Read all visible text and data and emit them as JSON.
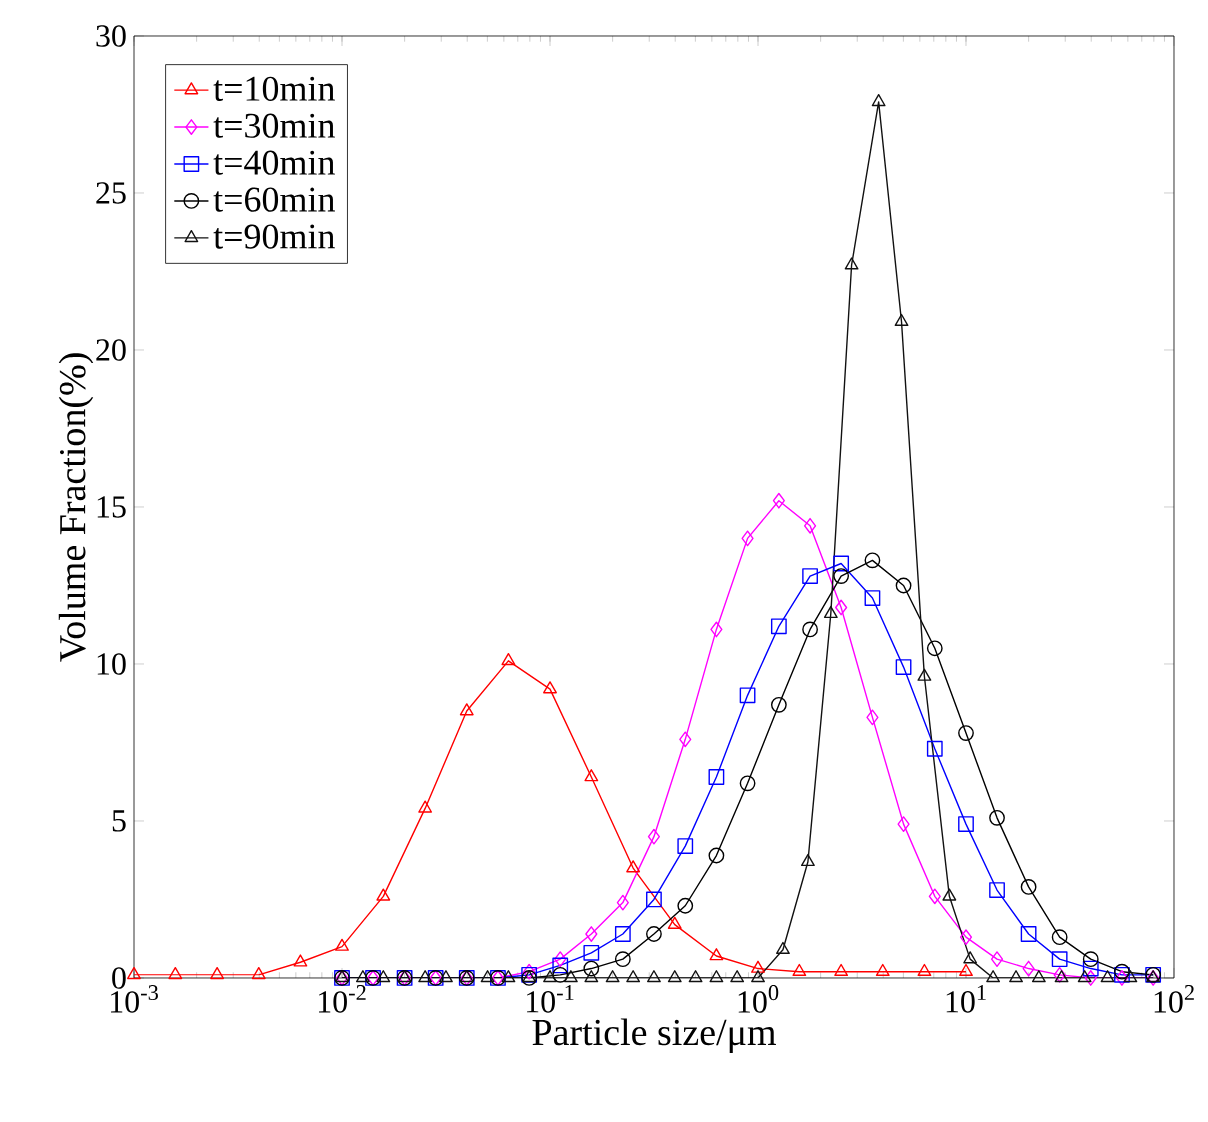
{
  "chart_data": {
    "type": "line",
    "xlabel": "Particle size/μm",
    "ylabel": "Volume Fraction(%)",
    "log": "x",
    "xlim": [
      0.001,
      100
    ],
    "ylim": [
      0,
      30
    ],
    "xticks": [
      {
        "value": 0.001,
        "label": "10$^{-3}$"
      },
      {
        "value": 0.01,
        "label": "10$^{-2}$"
      },
      {
        "value": 0.1,
        "label": "10$^{-1}$"
      },
      {
        "value": 1,
        "label": "10$^{0}$"
      },
      {
        "value": 10,
        "label": "10$^{1}$"
      },
      {
        "value": 100,
        "label": "10$^{2}$"
      }
    ],
    "yticks": [
      0,
      5,
      10,
      15,
      20,
      25,
      30
    ],
    "grid": false,
    "legend": "top left",
    "line_style": "solid",
    "series": [
      {
        "name": "t=10min",
        "color": "#ff0000",
        "marker": "triangle",
        "x": [
          0.001,
          0.00158,
          0.00251,
          0.00398,
          0.00631,
          0.01,
          0.0158,
          0.0251,
          0.0398,
          0.0631,
          0.1,
          0.158,
          0.251,
          0.398,
          0.631,
          1,
          1.58,
          2.51,
          3.98,
          6.31,
          10
        ],
        "values": [
          0.1,
          0.1,
          0.1,
          0.1,
          0.5,
          1.0,
          2.6,
          5.4,
          8.5,
          10.1,
          9.2,
          6.4,
          3.5,
          1.7,
          0.7,
          0.3,
          0.2,
          0.2,
          0.2,
          0.2,
          0.2
        ]
      },
      {
        "name": "t=30min",
        "color": "#ff00ff",
        "marker": "diamond",
        "x": [
          0.01,
          0.0141,
          0.02,
          0.0282,
          0.0398,
          0.0562,
          0.0794,
          0.112,
          0.158,
          0.224,
          0.316,
          0.447,
          0.631,
          0.891,
          1.26,
          1.78,
          2.51,
          3.55,
          5.01,
          7.08,
          10,
          14.1,
          20,
          28.2,
          39.8,
          56.2,
          79.4
        ],
        "values": [
          0,
          0,
          0,
          0,
          0,
          0,
          0.2,
          0.6,
          1.4,
          2.4,
          4.5,
          7.6,
          11.1,
          14.0,
          15.2,
          14.4,
          11.8,
          8.3,
          4.9,
          2.6,
          1.3,
          0.6,
          0.3,
          0.1,
          0,
          0,
          0
        ]
      },
      {
        "name": "t=40min",
        "color": "#0000ff",
        "marker": "square",
        "x": [
          0.01,
          0.0141,
          0.02,
          0.0282,
          0.0398,
          0.0562,
          0.0794,
          0.112,
          0.158,
          0.224,
          0.316,
          0.447,
          0.631,
          0.891,
          1.26,
          1.78,
          2.51,
          3.55,
          5.01,
          7.08,
          10,
          14.1,
          20,
          28.2,
          39.8,
          56.2,
          79.4
        ],
        "values": [
          0,
          0,
          0,
          0,
          0,
          0,
          0.1,
          0.4,
          0.8,
          1.4,
          2.5,
          4.2,
          6.4,
          9.0,
          11.2,
          12.8,
          13.2,
          12.1,
          9.9,
          7.3,
          4.9,
          2.8,
          1.4,
          0.6,
          0.3,
          0.1,
          0.1
        ]
      },
      {
        "name": "t=60min",
        "color": "#000000",
        "marker": "circle",
        "x": [
          0.01,
          0.0141,
          0.02,
          0.0282,
          0.0398,
          0.0562,
          0.0794,
          0.112,
          0.158,
          0.224,
          0.316,
          0.447,
          0.631,
          0.891,
          1.26,
          1.78,
          2.51,
          3.55,
          5.01,
          7.08,
          10,
          14.1,
          20,
          28.2,
          39.8,
          56.2,
          79.4
        ],
        "values": [
          0,
          0,
          0,
          0,
          0,
          0,
          0,
          0.1,
          0.3,
          0.6,
          1.4,
          2.3,
          3.9,
          6.2,
          8.7,
          11.1,
          12.8,
          13.3,
          12.5,
          10.5,
          7.8,
          5.1,
          2.9,
          1.3,
          0.6,
          0.2,
          0.1
        ]
      },
      {
        "name": "t=90min",
        "color": "#111111",
        "marker": "triangle",
        "x": [
          0.01,
          0.0126,
          0.0158,
          0.02,
          0.0251,
          0.0316,
          0.0398,
          0.0501,
          0.0631,
          0.0794,
          0.1,
          0.126,
          0.158,
          0.2,
          0.251,
          0.316,
          0.398,
          0.501,
          0.631,
          0.794,
          1,
          1.318,
          1.738,
          2.239,
          2.818,
          3.802,
          4.898,
          6.31,
          8.318,
          10.47,
          13.5,
          17.4,
          22.4,
          28.8,
          37.2,
          47.9,
          61.7,
          79.4
        ],
        "values": [
          0,
          0,
          0,
          0,
          0,
          0,
          0,
          0,
          0,
          0,
          0,
          0,
          0,
          0,
          0,
          0,
          0,
          0,
          0,
          0,
          0,
          0.9,
          3.7,
          11.6,
          22.7,
          27.9,
          20.9,
          9.6,
          2.6,
          0.6,
          0,
          0,
          0,
          0,
          0,
          0,
          0,
          0
        ]
      }
    ]
  }
}
